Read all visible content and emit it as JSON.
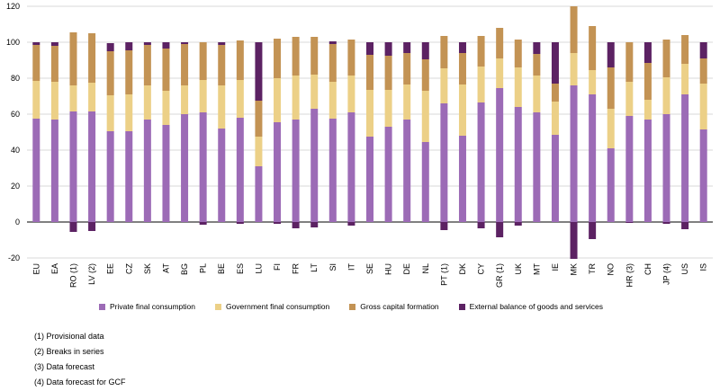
{
  "chart_data": {
    "type": "stacked-bar",
    "title": "",
    "xlabel": "",
    "ylabel": "",
    "ylim": [
      -20,
      120
    ],
    "yticks": [
      -20,
      0,
      20,
      40,
      60,
      80,
      100,
      120
    ],
    "grid": true,
    "legend_position": "bottom",
    "colors": {
      "private": "#9c6bb6",
      "government": "#ecd087",
      "gcf": "#c39354",
      "external": "#5c2263"
    },
    "categories": [
      "EU",
      "EA",
      "RO (1)",
      "LV (2)",
      "EE",
      "CZ",
      "SK",
      "AT",
      "BG",
      "PL",
      "BE",
      "ES",
      "LU",
      "FI",
      "FR",
      "LT",
      "SI",
      "IT",
      "SE",
      "HU",
      "DE",
      "NL",
      "PT (1)",
      "DK",
      "CY",
      "GR (1)",
      "UK",
      "MT",
      "IE",
      "MK",
      "TR",
      "NO",
      "HR (3)",
      "CH",
      "JP (4)",
      "US",
      "IS"
    ],
    "series": [
      {
        "name": "Private final consumption",
        "key": "private",
        "values": [
          57.5,
          57,
          61.5,
          61.5,
          50.5,
          50.5,
          57,
          54,
          60,
          61,
          52,
          58,
          31,
          55.5,
          57,
          63,
          57.5,
          61,
          47.5,
          53,
          57,
          44.5,
          66,
          48,
          66.5,
          74.5,
          64,
          61,
          48.5,
          76,
          71,
          41,
          59,
          57,
          60,
          71,
          51.5
        ]
      },
      {
        "name": "Government final consumption",
        "key": "government",
        "values": [
          21,
          21,
          14.5,
          16,
          20,
          20.5,
          19,
          19,
          16,
          18,
          24,
          21,
          16.5,
          24.5,
          24.5,
          19,
          20.5,
          20.5,
          26,
          20.5,
          19.5,
          28.5,
          19.5,
          28.5,
          20,
          16.5,
          22,
          20.5,
          18.5,
          18,
          13.5,
          22,
          19,
          11,
          20.5,
          17,
          25.5
        ]
      },
      {
        "name": "Gross capital formation",
        "key": "gcf",
        "values": [
          20,
          20,
          29.5,
          27.5,
          24.5,
          24.5,
          22.5,
          23.5,
          23,
          21,
          22.5,
          22,
          20,
          22,
          21.5,
          21,
          21,
          20,
          19.5,
          19,
          17.5,
          17.5,
          18,
          17.5,
          17,
          17,
          15.5,
          12,
          10,
          26,
          24.5,
          23,
          22,
          20.5,
          21,
          16,
          14
        ]
      },
      {
        "name": "External balance of goods and services",
        "key": "external",
        "values": [
          1.5,
          2,
          -5.5,
          -5,
          4.5,
          4.5,
          1.5,
          3.5,
          1,
          -1.5,
          1.5,
          -1,
          32.5,
          -1,
          -3.5,
          -3,
          1.5,
          -2,
          7,
          7.5,
          6,
          9.5,
          -4.5,
          6,
          -3.5,
          -8.5,
          -2,
          6.5,
          23,
          -20.5,
          -9.5,
          14,
          -0.5,
          11.5,
          -1,
          -4,
          9
        ]
      }
    ]
  },
  "notes": [
    "(1) Provisional data",
    "(2) Breaks in series",
    "(3) Data forecast",
    "(4) Data forecast for GCF"
  ]
}
